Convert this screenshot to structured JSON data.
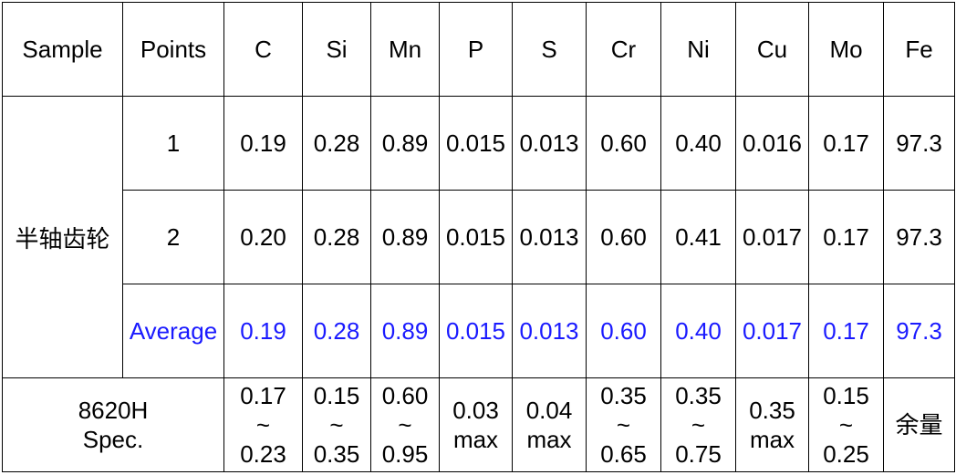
{
  "table": {
    "header": [
      "Sample",
      "Points",
      "C",
      "Si",
      "Mn",
      "P",
      "S",
      "Cr",
      "Ni",
      "Cu",
      "Mo",
      "Fe"
    ],
    "sample": "半轴齿轮",
    "rows": [
      {
        "point": "1",
        "values": [
          "0.19",
          "0.28",
          "0.89",
          "0.015",
          "0.013",
          "0.60",
          "0.40",
          "0.016",
          "0.17",
          "97.3"
        ]
      },
      {
        "point": "2",
        "values": [
          "0.20",
          "0.28",
          "0.89",
          "0.015",
          "0.013",
          "0.60",
          "0.41",
          "0.017",
          "0.17",
          "97.3"
        ]
      },
      {
        "point": "Average",
        "values": [
          "0.19",
          "0.28",
          "0.89",
          "0.015",
          "0.013",
          "0.60",
          "0.40",
          "0.017",
          "0.17",
          "97.3"
        ]
      }
    ],
    "spec": {
      "label": [
        "8620H",
        "Spec."
      ],
      "values": [
        [
          "0.17",
          "~",
          "0.23"
        ],
        [
          "0.15",
          "~",
          "0.35"
        ],
        [
          "0.60",
          "~",
          "0.95"
        ],
        [
          "0.03",
          "max"
        ],
        [
          "0.04",
          "max"
        ],
        [
          "0.35",
          "~",
          "0.65"
        ],
        [
          "0.35",
          "~",
          "0.75"
        ],
        [
          "0.35",
          "max"
        ],
        [
          "0.15",
          "~",
          "0.25"
        ],
        [
          "余量"
        ]
      ]
    }
  }
}
